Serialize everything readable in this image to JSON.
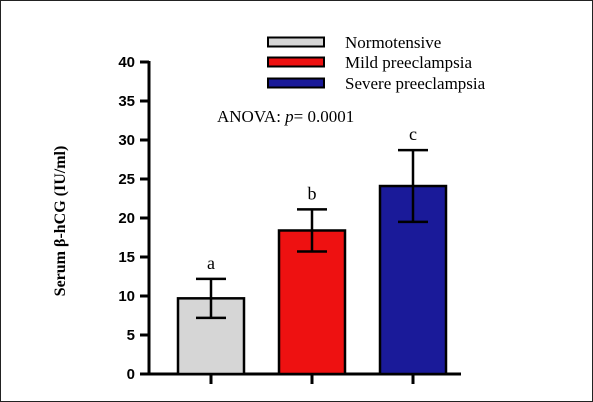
{
  "chart_data": {
    "type": "bar",
    "title": "",
    "xlabel": "",
    "ylabel": "Serum β-hCG (IU/ml)",
    "ylim": [
      0,
      40
    ],
    "yticks": [
      0,
      5,
      10,
      15,
      20,
      25,
      30,
      35,
      40
    ],
    "categories": [
      "Normotensive",
      "Mild preeclampsia",
      "Severe preeclampsia"
    ],
    "values": [
      9.7,
      18.4,
      24.1
    ],
    "errors": [
      2.5,
      2.7,
      4.6
    ],
    "significance_letters": [
      "a",
      "b",
      "c"
    ],
    "colors": [
      "#d6d6d6",
      "#ee1111",
      "#1a1a99"
    ],
    "annotation": {
      "prefix": "ANOVA: ",
      "italic": "p",
      "suffix": "= 0.0001"
    },
    "legend_position": "top-right",
    "grid": false
  }
}
